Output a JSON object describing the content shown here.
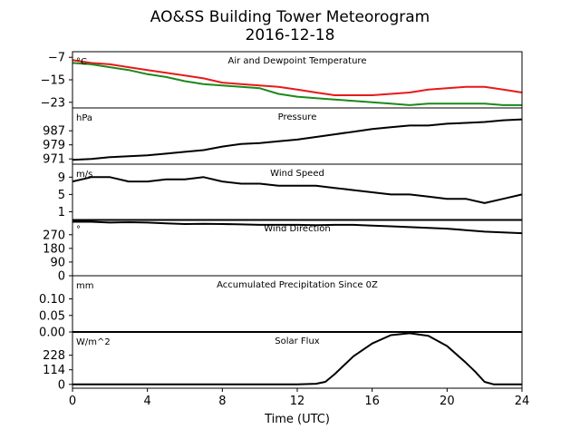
{
  "title": "AO&SS Building Tower Meteorogram",
  "subtitle": "2016-12-18",
  "colors": {
    "temperature": "#e8191a",
    "dewpoint": "#1a8a1a",
    "line": "#000000"
  },
  "chart_data": {
    "type": "line",
    "title": "AO&SS Building Tower Meteorogram",
    "subtitle": "2016-12-18",
    "xlabel": "Time (UTC)",
    "xlim": [
      0,
      24
    ],
    "xticks": [
      "0",
      "4",
      "8",
      "12",
      "16",
      "20",
      "24"
    ],
    "grid": false,
    "panels": [
      {
        "title": "Air and Dewpoint Temperature",
        "unit": "°C",
        "ylim": [
          -25,
          -5
        ],
        "yticks": [
          "−7",
          "−15",
          "−23"
        ],
        "yticks_values": [
          -7,
          -15,
          -23
        ],
        "series": [
          {
            "x": [
              0,
              1,
              2,
              3,
              4,
              5,
              6,
              7,
              8,
              9,
              10,
              11,
              12,
              13,
              14,
              15,
              16,
              17,
              18,
              19,
              20,
              21,
              22,
              23,
              24
            ],
            "values": [
              -8,
              -9,
              -9.5,
              -10.5,
              -11.5,
              -12.5,
              -13.5,
              -14.5,
              -16,
              -16.5,
              -17,
              -17.5,
              -18.5,
              -19.5,
              -20.5,
              -20.5,
              -20.5,
              -20,
              -19.5,
              -18.5,
              -18,
              -17.5,
              -17.5,
              -18.5,
              -19.5
            ]
          },
          {
            "x": [
              0,
              1,
              2,
              3,
              4,
              5,
              6,
              7,
              8,
              9,
              10,
              11,
              12,
              13,
              14,
              15,
              16,
              17,
              18,
              19,
              20,
              21,
              22,
              23,
              24
            ],
            "values": [
              -9,
              -9.5,
              -10.5,
              -11.5,
              -13,
              -14,
              -15.5,
              -16.5,
              -17,
              -17.5,
              -18,
              -20,
              -21,
              -21.5,
              -22,
              -22.5,
              -23,
              -23.5,
              -24,
              -23.5,
              -23.5,
              -23.5,
              -23.5,
              -24,
              -24
            ]
          }
        ]
      },
      {
        "title": "Pressure",
        "unit": "hPa",
        "ylim": [
          968,
          1000
        ],
        "yticks": [
          "987",
          "979",
          "971"
        ],
        "yticks_values": [
          987,
          979,
          971
        ],
        "series": [
          {
            "x": [
              0,
              1,
              2,
              3,
              4,
              5,
              6,
              7,
              8,
              9,
              10,
              11,
              12,
              13,
              14,
              15,
              16,
              17,
              18,
              19,
              20,
              21,
              22,
              23,
              24
            ],
            "values": [
              970.5,
              971,
              972,
              972.5,
              973,
              974,
              975,
              976,
              978,
              979.5,
              980,
              981,
              982,
              983.5,
              985,
              986.5,
              988,
              989,
              990,
              990,
              991,
              991.5,
              992,
              993,
              993.5
            ]
          }
        ]
      },
      {
        "title": "Wind Speed",
        "unit": "m/s",
        "ylim": [
          -1,
          12
        ],
        "yticks": [
          "9",
          "5",
          "1"
        ],
        "yticks_values": [
          9,
          5,
          1
        ],
        "series": [
          {
            "x": [
              0,
              1,
              2,
              3,
              4,
              5,
              6,
              7,
              8,
              9,
              10,
              11,
              12,
              13,
              14,
              15,
              16,
              17,
              18,
              19,
              20,
              21,
              22,
              23,
              24
            ],
            "values": [
              8,
              9,
              9,
              8,
              8,
              8.5,
              8.5,
              9,
              8,
              7.5,
              7.5,
              7,
              7,
              7,
              6.5,
              6,
              5.5,
              5,
              5,
              4.5,
              4,
              4,
              3,
              4,
              5
            ]
          }
        ]
      },
      {
        "title": "Wind Direction",
        "unit": "°",
        "ylim": [
          0,
          370
        ],
        "yticks": [
          "270",
          "180",
          "90",
          "0"
        ],
        "yticks_values": [
          270,
          180,
          90,
          0
        ],
        "series": [
          {
            "x": [
              0,
              1,
              2,
              3,
              4,
              5,
              6,
              7,
              8,
              9,
              10,
              11,
              12,
              13,
              14,
              15,
              16,
              17,
              18,
              19,
              20,
              21,
              22,
              23,
              24
            ],
            "values": [
              355,
              355,
              350,
              352,
              350,
              345,
              340,
              342,
              340,
              338,
              335,
              335,
              335,
              333,
              335,
              335,
              330,
              325,
              320,
              315,
              310,
              300,
              290,
              285,
              280
            ]
          }
        ]
      },
      {
        "title": "Accumulated Precipitation Since 0Z",
        "unit": "mm",
        "ylim": [
          0,
          0.17
        ],
        "yticks": [
          "0.10",
          "0.05",
          "0.00"
        ],
        "yticks_values": [
          0.1,
          0.05,
          0.0
        ],
        "series": [
          {
            "x": [
              0,
              24
            ],
            "values": [
              0,
              0
            ]
          }
        ]
      },
      {
        "title": "Solar Flux",
        "unit": "W/m^2",
        "ylim": [
          -30,
          410
        ],
        "yticks": [
          "228",
          "114",
          "0"
        ],
        "yticks_values": [
          228,
          114,
          0
        ],
        "series": [
          {
            "x": [
              0,
              6,
              12,
              13,
              13.5,
              14,
              15,
              16,
              17,
              18,
              19,
              20,
              21,
              21.5,
              22,
              22.5,
              23,
              24
            ],
            "values": [
              0,
              0,
              0,
              5,
              20,
              80,
              220,
              320,
              385,
              400,
              380,
              300,
              170,
              100,
              20,
              0,
              0,
              0
            ]
          }
        ]
      }
    ]
  }
}
